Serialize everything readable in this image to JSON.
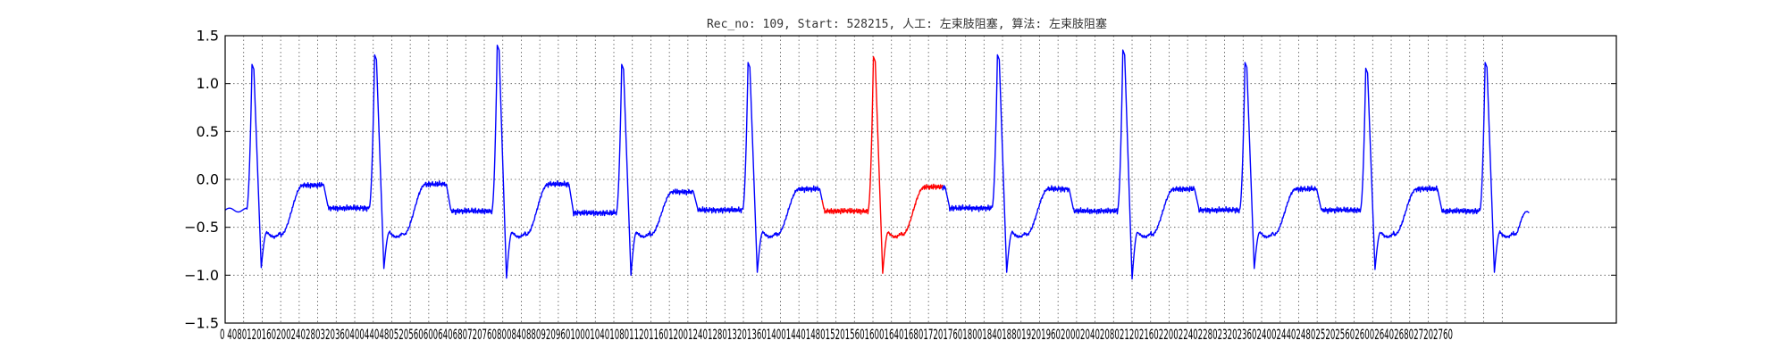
{
  "chart_data": {
    "type": "line",
    "title": "Rec_no: 109, Start: 528215, 人工: 左束肢阻塞, 算法: 左束肢阻塞",
    "xlabel": "",
    "ylabel": "",
    "xlim": [
      0,
      3000
    ],
    "ylim": [
      -1.5,
      1.5
    ],
    "grid": true,
    "ytick_labels": [
      "1.5",
      "1.0",
      "0.5",
      "0.0",
      "−0.5",
      "−1.0",
      "−1.5"
    ],
    "ytick_values": [
      1.5,
      1.0,
      0.5,
      0.0,
      -0.5,
      -1.0,
      -1.5
    ],
    "xtick_label_string": "0 4080120160200240280320360400440480520560600640680720760800840880920960100010401080112011601200124012801320136014001440148015201560160016401680172017601800184018801920196020002040208021202160220022402280232023602400244024802520256026002640268027202760",
    "xtick_labels": [
      "0",
      "40",
      "80",
      "120",
      "160",
      "200",
      "240",
      "280",
      "320",
      "360",
      "400",
      "440",
      "480",
      "520",
      "560",
      "600",
      "640",
      "680",
      "720",
      "760",
      "800",
      "840",
      "880",
      "920",
      "960",
      "1000",
      "1040",
      "1080",
      "1120",
      "1160",
      "1200",
      "1240",
      "1280",
      "1320",
      "1360",
      "1400",
      "1440",
      "1480",
      "1520",
      "1560",
      "1600",
      "1640",
      "1680",
      "1720",
      "1760",
      "1800",
      "1840",
      "1880",
      "1920",
      "1960",
      "2000",
      "2040",
      "2080",
      "2120",
      "2160",
      "2200",
      "2240",
      "2280",
      "2320",
      "2360",
      "2400",
      "2440",
      "2480",
      "2520",
      "2560",
      "2600",
      "2640",
      "2680",
      "2720",
      "2760"
    ],
    "beats": [
      {
        "r_peak": 58,
        "r_amp": 1.2,
        "s_amp": -0.92,
        "baseline": -0.32,
        "t_amp": -0.06
      },
      {
        "r_peak": 323,
        "r_amp": 1.3,
        "s_amp": -0.93,
        "baseline": -0.3,
        "t_amp": -0.05
      },
      {
        "r_peak": 588,
        "r_amp": 1.4,
        "s_amp": -1.03,
        "baseline": -0.33,
        "t_amp": -0.05
      },
      {
        "r_peak": 857,
        "r_amp": 1.2,
        "s_amp": -1.0,
        "baseline": -0.35,
        "t_amp": -0.13
      },
      {
        "r_peak": 1130,
        "r_amp": 1.22,
        "s_amp": -0.97,
        "baseline": -0.32,
        "t_amp": -0.1
      },
      {
        "r_peak": 1401,
        "r_amp": 1.28,
        "s_amp": -0.98,
        "baseline": -0.33,
        "t_amp": -0.08
      },
      {
        "r_peak": 1669,
        "r_amp": 1.3,
        "s_amp": -0.97,
        "baseline": -0.3,
        "t_amp": -0.1
      },
      {
        "r_peak": 1940,
        "r_amp": 1.35,
        "s_amp": -1.04,
        "baseline": -0.33,
        "t_amp": -0.1
      },
      {
        "r_peak": 2204,
        "r_amp": 1.22,
        "s_amp": -0.93,
        "baseline": -0.32,
        "t_amp": -0.1
      },
      {
        "r_peak": 2465,
        "r_amp": 1.16,
        "s_amp": -0.94,
        "baseline": -0.32,
        "t_amp": -0.1
      },
      {
        "r_peak": 2723,
        "r_amp": 1.22,
        "s_amp": -0.97,
        "baseline": -0.33,
        "t_amp": -0.1
      }
    ],
    "signal_end": 2818,
    "signal_end_value": -0.35,
    "series": [
      {
        "color": "#0000ff",
        "segments": [
          [
            0,
            1290
          ],
          [
            1550,
            2818
          ]
        ]
      },
      {
        "color": "#ff0000",
        "segments": [
          [
            1290,
            1550
          ]
        ]
      }
    ]
  }
}
